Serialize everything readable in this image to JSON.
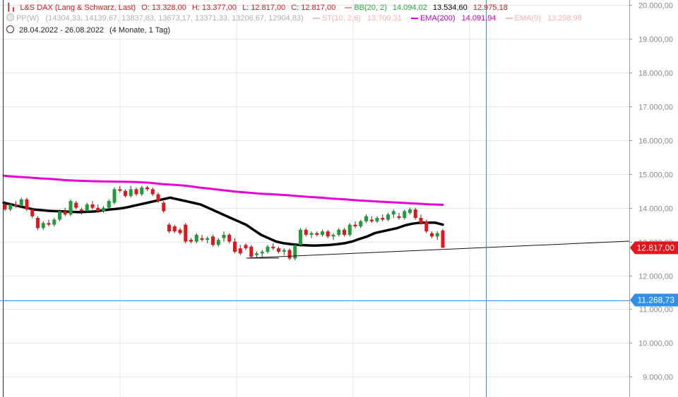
{
  "legend": {
    "title": "L&S DAX (Lang & Schwarz, Last)",
    "o": "O: 13.328,00",
    "h": "H: 13.377,00",
    "l": "L: 12.817,00",
    "c": "C: 12.817,00",
    "bb_label": "BB(20, 2)",
    "bb_upper": "14.094,02",
    "bb_mid": "13.534,60",
    "bb_lower": "12.975,18",
    "pp_label": "PP(W)",
    "pp_values": "(14304,33, 14139,67, 13837,83, 13673,17, 13371,33, 13206,67, 12904,83)",
    "st_label": "ST(10, 2,6)",
    "st_value": "13.709,31",
    "ema200_label": "EMA(200)",
    "ema200_value": "14.091,94",
    "ema9_label": "EMA(9)",
    "ema9_value": "13.298,98",
    "range": "28.04.2022 - 26.08.2022",
    "period": "(4 Monate, 1 Tag)"
  },
  "colors": {
    "up": "#1e9e3a",
    "down": "#e8141a",
    "ema200": "#e600d6",
    "bb_mid": "#000000",
    "grid": "#e6e6e6",
    "crosshair": "#3a8ee6",
    "last_badge": "#e8141a",
    "cursor_badge": "#2f8fea",
    "title": "#e8141a",
    "bb_text": "#27a83d",
    "bb_lower": "#e8141a"
  },
  "chart_data": {
    "type": "candlestick",
    "ylim": [
      8400,
      20150
    ],
    "y_ticks": [
      "9.000,00",
      "10.000,00",
      "11.000,00",
      "12.000,00",
      "13.000,00",
      "14.000,00",
      "15.000,00",
      "16.000,00",
      "17.000,00",
      "18.000,00",
      "19.000,00",
      "20.000,00"
    ],
    "y_tick_values": [
      9000,
      10000,
      11000,
      12000,
      13000,
      14000,
      15000,
      16000,
      17000,
      18000,
      19000,
      20000
    ],
    "last_price_label": "12.817,00",
    "last_price": 12817,
    "cursor_price_label": "11.268,73",
    "cursor_price": 11268.73,
    "candles": [
      [
        14100,
        14200,
        13900,
        13950
      ],
      [
        13950,
        14150,
        13900,
        14100
      ],
      [
        14100,
        14200,
        14000,
        14050
      ],
      [
        14050,
        14300,
        14000,
        14250
      ],
      [
        14250,
        14300,
        13900,
        13950
      ],
      [
        13950,
        14000,
        13700,
        13750
      ],
      [
        13700,
        13750,
        13350,
        13400
      ],
      [
        13400,
        13600,
        13350,
        13550
      ],
      [
        13550,
        13650,
        13450,
        13500
      ],
      [
        13500,
        13700,
        13450,
        13650
      ],
      [
        13650,
        13950,
        13600,
        13900
      ],
      [
        13900,
        14000,
        13750,
        13800
      ],
      [
        13800,
        14250,
        13750,
        14200
      ],
      [
        14150,
        14200,
        13950,
        14000
      ],
      [
        13950,
        14000,
        13800,
        13900
      ],
      [
        13900,
        14150,
        13850,
        14100
      ],
      [
        14100,
        14200,
        13950,
        14000
      ],
      [
        14000,
        14100,
        13850,
        13900
      ],
      [
        13900,
        14050,
        13850,
        14000
      ],
      [
        14000,
        14250,
        13950,
        14200
      ],
      [
        14150,
        14600,
        14100,
        14550
      ],
      [
        14550,
        14650,
        14450,
        14500
      ],
      [
        14500,
        14550,
        14300,
        14350
      ],
      [
        14350,
        14650,
        14300,
        14550
      ],
      [
        14550,
        14600,
        14350,
        14400
      ],
      [
        14400,
        14650,
        14350,
        14600
      ],
      [
        14600,
        14650,
        14500,
        14550
      ],
      [
        14550,
        14600,
        14350,
        14400
      ],
      [
        14400,
        14450,
        14150,
        14200
      ],
      [
        14150,
        14200,
        13850,
        13900
      ],
      [
        13500,
        13550,
        13250,
        13300
      ],
      [
        13450,
        13500,
        13250,
        13300
      ],
      [
        13350,
        13400,
        13200,
        13250
      ],
      [
        13500,
        13550,
        12950,
        13000
      ],
      [
        13050,
        13100,
        12950,
        13000
      ],
      [
        13000,
        13250,
        12950,
        13200
      ],
      [
        13100,
        13200,
        13000,
        13050
      ],
      [
        13050,
        13150,
        12950,
        13100
      ],
      [
        13150,
        13200,
        12850,
        12900
      ],
      [
        12900,
        13100,
        12850,
        13050
      ],
      [
        13100,
        13300,
        13000,
        13200
      ],
      [
        13200,
        13250,
        12950,
        13000
      ],
      [
        13000,
        13100,
        12650,
        12700
      ],
      [
        12800,
        12900,
        12600,
        12650
      ],
      [
        12900,
        12950,
        12750,
        12800
      ],
      [
        12850,
        12900,
        12500,
        12550
      ],
      [
        12600,
        12700,
        12500,
        12650
      ],
      [
        12650,
        12750,
        12550,
        12700
      ],
      [
        12700,
        12900,
        12650,
        12850
      ],
      [
        12850,
        12950,
        12750,
        12800
      ],
      [
        12800,
        12850,
        12650,
        12700
      ],
      [
        12700,
        12800,
        12600,
        12750
      ],
      [
        12750,
        12800,
        12450,
        12500
      ],
      [
        12500,
        12950,
        12450,
        12900
      ],
      [
        12900,
        13400,
        12850,
        13350
      ],
      [
        13350,
        13400,
        13150,
        13200
      ],
      [
        13200,
        13300,
        13100,
        13250
      ],
      [
        13250,
        13300,
        13150,
        13200
      ],
      [
        13200,
        13350,
        13150,
        13300
      ],
      [
        13300,
        13350,
        13100,
        13150
      ],
      [
        13150,
        13250,
        13050,
        13200
      ],
      [
        13200,
        13400,
        13150,
        13350
      ],
      [
        13350,
        13400,
        13150,
        13200
      ],
      [
        13200,
        13550,
        13150,
        13500
      ],
      [
        13500,
        13600,
        13400,
        13450
      ],
      [
        13450,
        13650,
        13400,
        13600
      ],
      [
        13600,
        13800,
        13550,
        13750
      ],
      [
        13650,
        13750,
        13550,
        13600
      ],
      [
        13600,
        13750,
        13550,
        13700
      ],
      [
        13700,
        13800,
        13600,
        13650
      ],
      [
        13650,
        13850,
        13600,
        13800
      ],
      [
        13800,
        13950,
        13700,
        13900
      ],
      [
        13750,
        13850,
        13650,
        13700
      ],
      [
        13700,
        13950,
        13650,
        13900
      ],
      [
        13850,
        14000,
        13800,
        13950
      ],
      [
        13950,
        14000,
        13650,
        13700
      ],
      [
        13700,
        13800,
        13500,
        13550
      ],
      [
        13600,
        13650,
        13250,
        13300
      ],
      [
        13250,
        13300,
        13100,
        13150
      ],
      [
        13150,
        13300,
        13050,
        13250
      ],
      [
        13328,
        13377,
        12817,
        12817
      ]
    ],
    "bb_mid": [
      14150,
      14100,
      14050,
      14000,
      13950,
      13930,
      13910,
      13900,
      13890,
      13880,
      13870,
      13880,
      13890,
      13920,
      13950,
      13970,
      14000,
      14050,
      14100,
      14150,
      14200,
      14250,
      14300,
      14250,
      14200,
      14150,
      14100,
      14000,
      13900,
      13800,
      13700,
      13600,
      13500,
      13350,
      13200,
      13100,
      13000,
      12950,
      12920,
      12900,
      12890,
      12880,
      12890,
      12900,
      12920,
      12950,
      13000,
      13080,
      13150,
      13250,
      13300,
      13350,
      13400,
      13480,
      13530,
      13560,
      13560,
      13560,
      13500
    ],
    "ema200": [
      14950,
      14920,
      14900,
      14870,
      14850,
      14820,
      14800,
      14790,
      14780,
      14775,
      14770,
      14760,
      14740,
      14700,
      14680,
      14650,
      14600,
      14560,
      14520,
      14480,
      14450,
      14420,
      14400,
      14380,
      14350,
      14320,
      14300,
      14270,
      14250,
      14220,
      14200,
      14180,
      14160,
      14140,
      14120,
      14100,
      14090
    ]
  }
}
